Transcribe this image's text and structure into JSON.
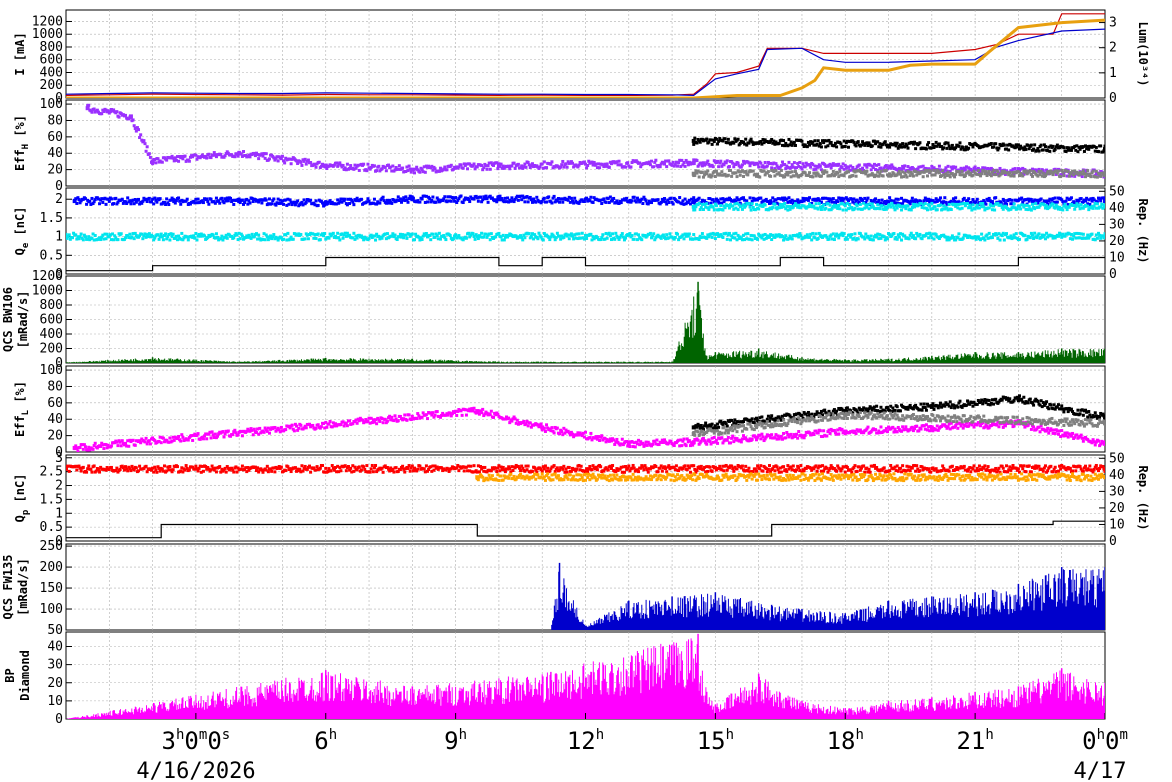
{
  "chart_data": [
    {
      "type": "line",
      "ylabel": "I [mA]",
      "y2label": "Lum(10³⁴)",
      "yticks": [
        "0",
        "200",
        "400",
        "600",
        "800",
        "1000",
        "1200"
      ],
      "y2ticks": [
        "0",
        "1",
        "2",
        "3"
      ],
      "ylim": [
        0,
        1380
      ],
      "y2lim": [
        0,
        3.5
      ],
      "series": [
        {
          "color": "#cc0000",
          "axis": "left",
          "x": [
            0,
            1,
            2,
            3,
            4,
            5,
            6,
            7,
            8,
            9,
            10,
            11,
            12,
            13,
            14,
            14.5,
            14.8,
            15,
            15.5,
            16,
            16.2,
            17,
            17.5,
            18,
            19,
            20,
            21,
            21.5,
            22,
            22.8,
            23,
            24
          ],
          "y": [
            40,
            50,
            60,
            55,
            50,
            45,
            55,
            50,
            50,
            45,
            40,
            45,
            40,
            40,
            45,
            60,
            220,
            380,
            400,
            500,
            780,
            780,
            700,
            700,
            700,
            700,
            760,
            840,
            1000,
            1000,
            1320,
            1320
          ]
        },
        {
          "color": "#0000cc",
          "axis": "left",
          "x": [
            0,
            1,
            2,
            3,
            4,
            5,
            6,
            7,
            8,
            9,
            10,
            11,
            12,
            13,
            14,
            14.5,
            15,
            15.5,
            16,
            16.2,
            17,
            17.5,
            18,
            19,
            20,
            21,
            21.5,
            22,
            23,
            24
          ],
          "y": [
            60,
            70,
            80,
            75,
            70,
            70,
            80,
            75,
            70,
            65,
            60,
            60,
            55,
            55,
            50,
            40,
            300,
            380,
            450,
            760,
            780,
            600,
            560,
            560,
            580,
            600,
            800,
            900,
            1050,
            1080
          ]
        },
        {
          "color": "#e8a010",
          "axis": "right",
          "x": [
            0,
            14.5,
            15,
            15.5,
            16,
            16.5,
            17,
            17.3,
            17.5,
            18,
            19,
            19.5,
            20,
            21,
            21.3,
            22,
            23,
            24
          ],
          "y": [
            0,
            0,
            0.05,
            0.1,
            0.1,
            0.1,
            0.4,
            0.7,
            1.2,
            1.1,
            1.1,
            1.3,
            1.35,
            1.35,
            1.8,
            2.8,
            3.0,
            3.1
          ]
        }
      ]
    },
    {
      "type": "scatter",
      "ylabel": "Eff_H [%]",
      "yticks": [
        "0",
        "20",
        "40",
        "60",
        "80",
        "100"
      ],
      "ylim": [
        0,
        105
      ],
      "series": [
        {
          "color": "#000000",
          "x": [
            14.5,
            24
          ],
          "y": [
            55,
            45
          ]
        },
        {
          "color": "#9b30ff",
          "x": [
            0.5,
            1.5,
            2,
            4,
            6,
            8,
            10,
            14.5,
            24
          ],
          "y": [
            95,
            85,
            30,
            40,
            25,
            20,
            25,
            28,
            15
          ]
        },
        {
          "color": "#808080",
          "x": [
            14.5,
            24
          ],
          "y": [
            15,
            15
          ]
        }
      ]
    },
    {
      "type": "scatter",
      "ylabel": "Q_e [nC]",
      "y2label": "Rep. (Hz)",
      "yticks": [
        "0",
        "0.5",
        "1",
        "1.5",
        "2"
      ],
      "y2ticks": [
        "0",
        "10",
        "20",
        "30",
        "40",
        "50"
      ],
      "ylim": [
        0,
        2.3
      ],
      "y2lim": [
        0,
        52
      ],
      "series": [
        {
          "color": "#0000ff",
          "x": [
            0.2,
            2.5,
            4,
            6,
            8,
            10,
            14.5,
            24
          ],
          "y": [
            1.95,
            1.95,
            1.95,
            1.9,
            2.0,
            2.0,
            1.95,
            1.95
          ]
        },
        {
          "color": "#00e5ee",
          "x": [
            14.5,
            24
          ],
          "y": [
            1.8,
            1.8
          ]
        },
        {
          "color": "#000000",
          "x": [
            0,
            2,
            3,
            5,
            6,
            7,
            8,
            9,
            10,
            11,
            12,
            13,
            14,
            15,
            16.5,
            17.5,
            18.5,
            19.5,
            20.5,
            22,
            24
          ],
          "y": [
            2,
            5,
            5,
            5,
            10,
            10,
            10,
            10,
            5,
            10,
            5,
            5,
            5,
            5,
            10,
            5,
            5,
            5,
            5,
            10,
            10
          ]
        },
        {
          "color": "#00e5ee",
          "x": [
            0,
            24
          ],
          "y": [
            1,
            1
          ]
        }
      ]
    },
    {
      "type": "area",
      "ylabel": "QCS BW106 [mRad/s]",
      "yticks": [
        "0",
        "200",
        "400",
        "600",
        "800",
        "1000",
        "1200"
      ],
      "ylim": [
        0,
        1200
      ],
      "series": [
        {
          "color": "#006400",
          "x": [
            0,
            2,
            4,
            6,
            8,
            10,
            12,
            14,
            14.6,
            14.8,
            15,
            16,
            17,
            18,
            19,
            20,
            21,
            22,
            23,
            24
          ],
          "y": [
            10,
            80,
            20,
            70,
            60,
            20,
            20,
            20,
            1120,
            100,
            150,
            200,
            80,
            50,
            60,
            100,
            150,
            150,
            200,
            200
          ]
        }
      ]
    },
    {
      "type": "scatter",
      "ylabel": "Eff_L [%]",
      "yticks": [
        "0",
        "20",
        "40",
        "60",
        "80",
        "100"
      ],
      "ylim": [
        0,
        105
      ],
      "series": [
        {
          "color": "#000000",
          "x": [
            14.5,
            18,
            20,
            22,
            24
          ],
          "y": [
            30,
            50,
            55,
            65,
            42
          ]
        },
        {
          "color": "#ff00ff",
          "x": [
            0.2,
            9.5,
            11,
            13,
            14.5,
            18,
            20,
            22,
            24
          ],
          "y": [
            5,
            50,
            30,
            10,
            12,
            25,
            30,
            35,
            10
          ]
        },
        {
          "color": "#808080",
          "x": [
            14.5,
            18,
            24
          ],
          "y": [
            22,
            45,
            35
          ]
        }
      ]
    },
    {
      "type": "scatter",
      "ylabel": "Q_p [nC]",
      "y2label": "Rep. (Hz)",
      "yticks": [
        "0",
        "0.5",
        "1",
        "1.5",
        "2",
        "2.5",
        "3"
      ],
      "y2ticks": [
        "0",
        "10",
        "20",
        "30",
        "40",
        "50"
      ],
      "ylim": [
        0,
        3.1
      ],
      "y2lim": [
        0,
        52
      ],
      "series": [
        {
          "color": "#ff0000",
          "x": [
            0,
            24
          ],
          "y": [
            2.6,
            2.6
          ]
        },
        {
          "color": "#ffa500",
          "x": [
            9.5,
            24
          ],
          "y": [
            2.3,
            2.3
          ]
        },
        {
          "color": "#000000",
          "x": [
            0,
            2.2,
            9.5,
            12.8,
            16.3,
            22.8,
            24
          ],
          "y": [
            2,
            10,
            3,
            3,
            10,
            12,
            12
          ]
        }
      ]
    },
    {
      "type": "area",
      "ylabel": "QCS FW135 [mRad/s]",
      "yticks": [
        "50",
        "100",
        "150",
        "200",
        "250"
      ],
      "ylim": [
        50,
        255
      ],
      "series": [
        {
          "color": "#0000cc",
          "x": [
            0,
            11.2,
            11.4,
            12,
            13,
            14,
            15,
            16.3,
            17,
            18,
            19,
            20,
            21,
            22,
            23,
            24
          ],
          "y": [
            50,
            50,
            210,
            60,
            120,
            130,
            140,
            110,
            100,
            90,
            120,
            130,
            140,
            160,
            200,
            200
          ]
        }
      ]
    },
    {
      "type": "area",
      "ylabel": "BP Diamond",
      "yticks": [
        "0",
        "10",
        "20",
        "30",
        "40"
      ],
      "ylim": [
        0,
        48
      ],
      "series": [
        {
          "color": "#ff00ff",
          "x": [
            0,
            6,
            8,
            11.2,
            14.6,
            14.8,
            15,
            16,
            17,
            18,
            19,
            20,
            21,
            22,
            23,
            24
          ],
          "y": [
            0,
            27,
            18,
            26,
            47,
            15,
            8,
            25,
            10,
            6,
            10,
            12,
            15,
            18,
            28,
            20
          ]
        }
      ]
    }
  ],
  "x_axis": {
    "range_hours": [
      0,
      24
    ],
    "ticks": [
      {
        "h": 3,
        "main": "3",
        "sup": "h",
        "rest": "0",
        "sup2": "m",
        "rest2": "0",
        "sup3": "s"
      },
      {
        "h": 6,
        "main": "6",
        "sup": "h"
      },
      {
        "h": 9,
        "main": "9",
        "sup": "h"
      },
      {
        "h": 12,
        "main": "12",
        "sup": "h"
      },
      {
        "h": 15,
        "main": "15",
        "sup": "h"
      },
      {
        "h": 18,
        "main": "18",
        "sup": "h"
      },
      {
        "h": 21,
        "main": "21",
        "sup": "h"
      },
      {
        "h": 24,
        "main": "0",
        "sup": "h",
        "rest": "0",
        "sup2": "m"
      }
    ],
    "date_start": "4/16/2026",
    "date_end": "4/17"
  }
}
